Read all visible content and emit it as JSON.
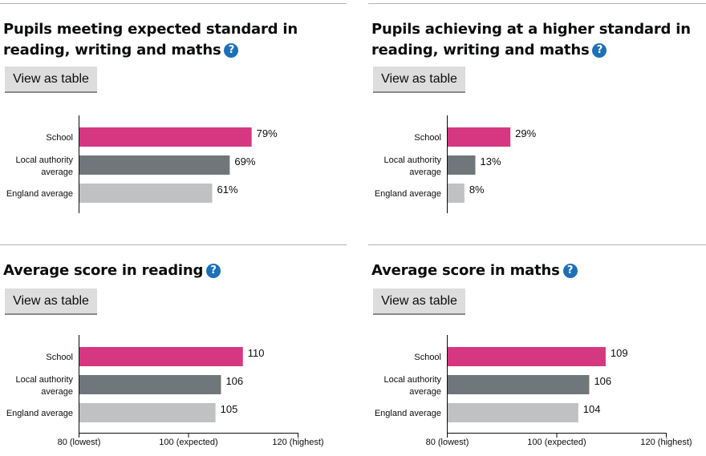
{
  "colors": {
    "school": "#d53880",
    "local_authority": "#6f777b",
    "england": "#bfc1c3",
    "help": "#1d70b8"
  },
  "help_icon": "question-mark-circle-icon",
  "panels": [
    {
      "title": "Pupils meeting expected standard in reading, writing and maths",
      "button": "View as table",
      "chart_data": {
        "type": "bar",
        "orientation": "horizontal",
        "categories": [
          "School",
          "Local authority average",
          "England average"
        ],
        "values": [
          79,
          69,
          61
        ],
        "value_labels": [
          "79%",
          "69%",
          "61%"
        ],
        "unit": "%",
        "xlim": [
          0,
          100
        ]
      }
    },
    {
      "title": "Pupils achieving at a higher standard in reading, writing and maths",
      "button": "View as table",
      "chart_data": {
        "type": "bar",
        "orientation": "horizontal",
        "categories": [
          "School",
          "Local authority average",
          "England average"
        ],
        "values": [
          29,
          13,
          8
        ],
        "value_labels": [
          "29%",
          "13%",
          "8%"
        ],
        "unit": "%",
        "xlim": [
          0,
          100
        ]
      }
    },
    {
      "title": "Average score in reading",
      "button": "View as table",
      "chart_data": {
        "type": "bar",
        "orientation": "horizontal",
        "categories": [
          "School",
          "Local authority average",
          "England average"
        ],
        "values": [
          110,
          106,
          105
        ],
        "value_labels": [
          "110",
          "106",
          "105"
        ],
        "xlim": [
          80,
          120
        ],
        "ticks": [
          80,
          100,
          120
        ],
        "tick_labels": [
          "80 (lowest)",
          "100 (expected)",
          "120 (highest)"
        ]
      }
    },
    {
      "title": "Average score in maths",
      "button": "View as table",
      "chart_data": {
        "type": "bar",
        "orientation": "horizontal",
        "categories": [
          "School",
          "Local authority average",
          "England average"
        ],
        "values": [
          109,
          106,
          104
        ],
        "value_labels": [
          "109",
          "106",
          "104"
        ],
        "xlim": [
          80,
          120
        ],
        "ticks": [
          80,
          100,
          120
        ],
        "tick_labels": [
          "80 (lowest)",
          "100 (expected)",
          "120 (highest)"
        ]
      }
    }
  ]
}
